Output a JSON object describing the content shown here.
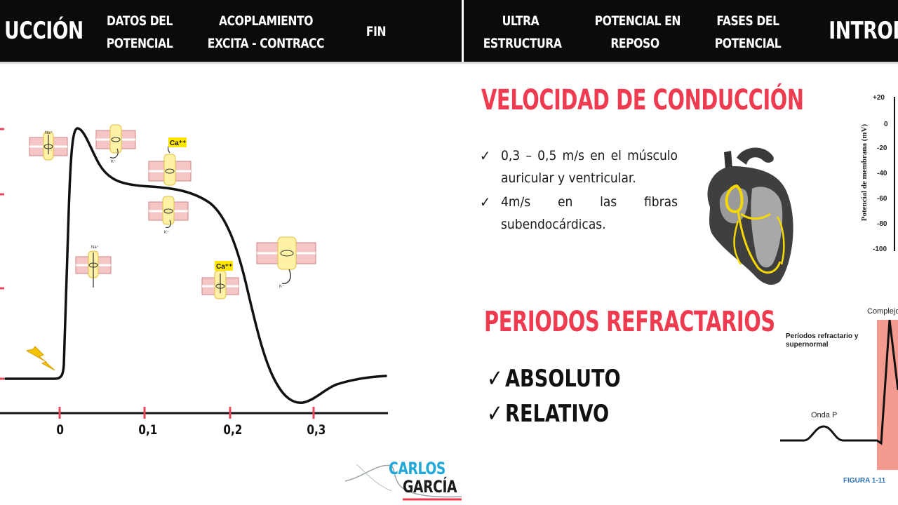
{
  "nav_left": {
    "items": [
      {
        "lines": [
          "UCCIÓN"
        ]
      },
      {
        "lines": [
          "DATOS DEL",
          "POTENCIAL"
        ]
      },
      {
        "lines": [
          "ACOPLAMIENTO",
          "EXCITA - CONTRACC"
        ]
      },
      {
        "lines": [
          "FIN"
        ]
      }
    ]
  },
  "nav_right": {
    "items": [
      {
        "lines": [
          "ULTRA",
          "ESTRUCTURA"
        ]
      },
      {
        "lines": [
          "POTENCIAL EN",
          "REPOSO"
        ]
      },
      {
        "lines": [
          "FASES DEL",
          "POTENCIAL"
        ]
      },
      {
        "lines": [
          "INTRODU"
        ]
      }
    ]
  },
  "conduction": {
    "title": "VELOCIDAD DE CONDUCCIÓN",
    "bullets": [
      "0,3 – 0,5 m/s en el músculo auricular y ventricular.",
      "4m/s en las fibras subendocárdicas."
    ]
  },
  "refractory": {
    "title": "PERIODOS REFRACTARIOS",
    "items": [
      "ABSOLUTO",
      "RELATIVO"
    ]
  },
  "action_potential": {
    "x_ticks": [
      "0",
      "0,1",
      "0,2",
      "0,3"
    ],
    "ion_labels": [
      "Na⁺",
      "K⁺",
      "Ca⁺⁺",
      "Ca⁺⁺",
      "K⁺",
      "Na⁺",
      "K⁺"
    ]
  },
  "mini_chart": {
    "ylabel": "Potencial de membrana (mV)",
    "ticks": [
      "+20",
      "0",
      "-20",
      "-40",
      "-60",
      "-80",
      "-100"
    ]
  },
  "ecg_panel": {
    "header": "Complejo",
    "label": "Períodos refractario y supernormal",
    "wave": "Onda P",
    "figure": "FIGURA 1-11"
  },
  "logo": {
    "line1": "CARLOS",
    "line2": "GARCÍA"
  },
  "colors": {
    "accent_red": "#ef3b4f",
    "nav_bg": "#0b0b0b",
    "logo_blue": "#20a8d8",
    "highlight_yellow": "#ffe600"
  }
}
